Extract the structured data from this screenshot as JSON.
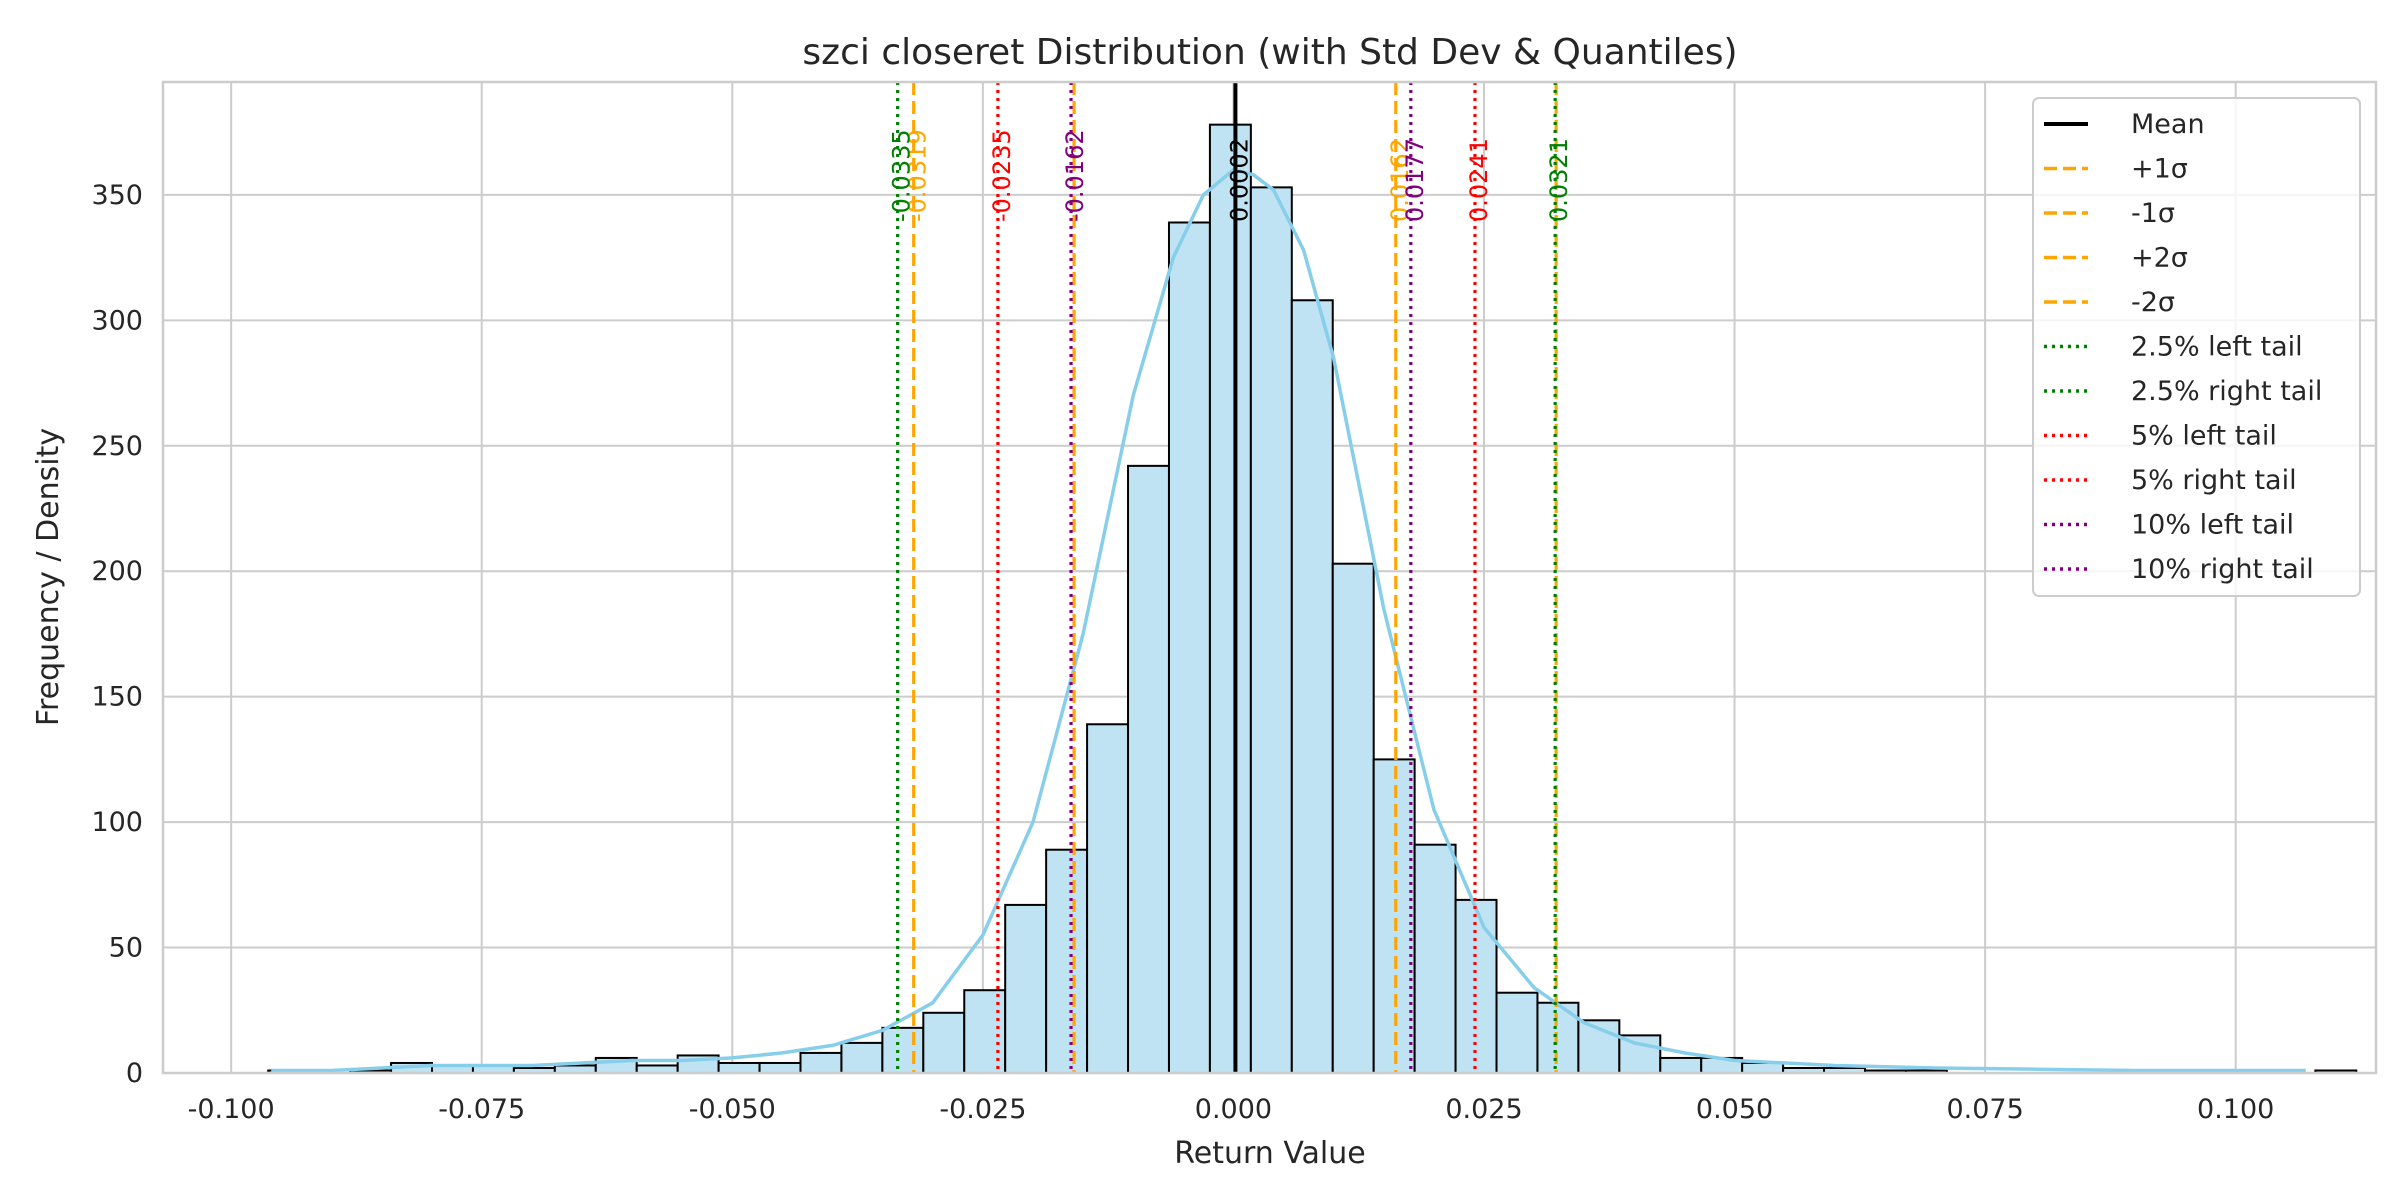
{
  "chart_data": {
    "type": "bar",
    "title": "szci closeret Distribution (with Std Dev & Quantiles)",
    "xlabel": "Return Value",
    "ylabel": "Frequency / Density",
    "xlim": [
      -0.1068,
      0.114
    ],
    "ylim": [
      0,
      395
    ],
    "grid": true,
    "legend_position": "top-right",
    "x_ticks": [
      {
        "value": -0.1,
        "label": "-0.100"
      },
      {
        "value": -0.075,
        "label": "-0.075"
      },
      {
        "value": -0.05,
        "label": "-0.050"
      },
      {
        "value": -0.025,
        "label": "-0.025"
      },
      {
        "value": 0.0,
        "label": "0.000"
      },
      {
        "value": 0.025,
        "label": "0.025"
      },
      {
        "value": 0.05,
        "label": "0.050"
      },
      {
        "value": 0.075,
        "label": "0.075"
      },
      {
        "value": 0.1,
        "label": "0.100"
      }
    ],
    "y_ticks": [
      {
        "value": 0,
        "label": "0"
      },
      {
        "value": 50,
        "label": "50"
      },
      {
        "value": 100,
        "label": "100"
      },
      {
        "value": 150,
        "label": "150"
      },
      {
        "value": 200,
        "label": "200"
      },
      {
        "value": 250,
        "label": "250"
      },
      {
        "value": 300,
        "label": "300"
      },
      {
        "value": 350,
        "label": "350"
      }
    ],
    "histogram": {
      "bin_start": -0.0963,
      "bin_width": 0.004085,
      "counts": [
        1,
        0,
        1,
        4,
        3,
        3,
        2,
        3,
        6,
        3,
        7,
        4,
        4,
        8,
        12,
        18,
        24,
        33,
        67,
        89,
        139,
        242,
        339,
        378,
        353,
        308,
        203,
        125,
        91,
        69,
        32,
        28,
        21,
        15,
        6,
        6,
        4,
        2,
        2,
        1,
        1,
        0,
        0,
        0,
        0,
        0,
        0,
        0,
        0,
        0,
        1
      ],
      "fill_color": "#c0e3f3",
      "edge_color": "#000000"
    },
    "kde": {
      "color": "#87ceeb",
      "x": [
        -0.096,
        -0.09,
        -0.085,
        -0.08,
        -0.075,
        -0.07,
        -0.065,
        -0.06,
        -0.055,
        -0.05,
        -0.045,
        -0.04,
        -0.035,
        -0.03,
        -0.025,
        -0.02,
        -0.015,
        -0.01,
        -0.006,
        -0.003,
        0.0,
        0.002,
        0.004,
        0.007,
        0.01,
        0.015,
        0.02,
        0.025,
        0.03,
        0.035,
        0.04,
        0.045,
        0.05,
        0.06,
        0.07,
        0.08,
        0.09,
        0.1,
        0.107
      ],
      "y": [
        1,
        1,
        2,
        3,
        3,
        3,
        4,
        5,
        5,
        6,
        8,
        11,
        17,
        28,
        55,
        100,
        175,
        270,
        325,
        350,
        360,
        358,
        352,
        328,
        285,
        185,
        105,
        58,
        34,
        20,
        12,
        8,
        5,
        3,
        2,
        1.5,
        1,
        1,
        1
      ]
    },
    "vertical_lines": [
      {
        "legend": "Mean",
        "value": 0.0002,
        "label": "0.0002",
        "color": "#000000",
        "style": "solid",
        "show_label": true
      },
      {
        "legend": "+1σ",
        "value": 0.0162,
        "label": "0.0162",
        "color": "#ffa500",
        "style": "dashed",
        "show_label": true
      },
      {
        "legend": "-1σ",
        "value": -0.0159,
        "label": "-0.0159",
        "color": "#ffa500",
        "style": "dashed",
        "show_label": false
      },
      {
        "legend": "+2σ",
        "value": 0.0322,
        "label": "0.0322",
        "color": "#ffa500",
        "style": "dashed",
        "show_label": false
      },
      {
        "legend": "-2σ",
        "value": -0.0319,
        "label": "-0.0319",
        "color": "#ffa500",
        "style": "dashed",
        "show_label": true
      },
      {
        "legend": "2.5% left tail",
        "value": -0.0335,
        "label": "-0.0335",
        "color": "#008000",
        "style": "dotted",
        "show_label": true
      },
      {
        "legend": "2.5% right tail",
        "value": 0.0321,
        "label": "0.0321",
        "color": "#008000",
        "style": "dotted",
        "show_label": true
      },
      {
        "legend": "5% left tail",
        "value": -0.0235,
        "label": "-0.0235",
        "color": "#ff0000",
        "style": "dotted",
        "show_label": true
      },
      {
        "legend": "5% right tail",
        "value": 0.0241,
        "label": "0.0241",
        "color": "#ff0000",
        "style": "dotted",
        "show_label": true
      },
      {
        "legend": "10% left tail",
        "value": -0.0162,
        "label": "-0.0162",
        "color": "#800080",
        "style": "dotted",
        "show_label": true
      },
      {
        "legend": "10% right tail",
        "value": 0.0177,
        "label": "0.0177",
        "color": "#800080",
        "style": "dotted",
        "show_label": true
      }
    ]
  }
}
